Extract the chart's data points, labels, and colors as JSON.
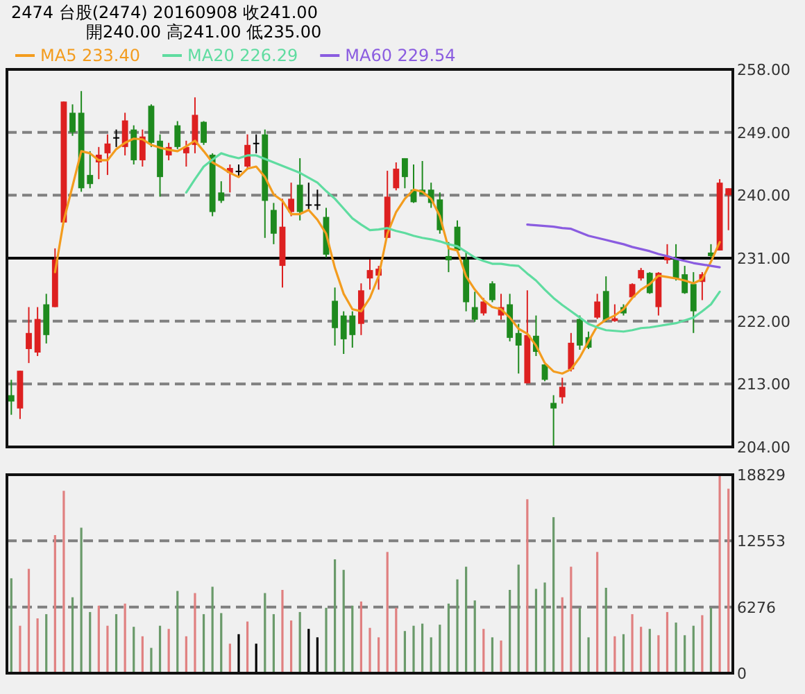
{
  "chart_data": [
    {
      "type": "candlestick",
      "title": "2474  台股(2474) 20160908   收241.00",
      "subtitle": "開240.00   高241.00   低235.00",
      "categories": [
        null,
        null,
        null,
        null,
        null,
        null,
        null,
        null,
        null,
        null,
        null,
        null,
        null,
        null,
        null,
        null,
        null,
        null,
        null,
        null,
        null,
        null,
        null,
        null,
        null,
        null,
        null,
        null,
        null,
        null,
        null,
        null,
        null,
        null,
        null,
        null,
        null,
        null,
        null,
        null,
        null,
        null,
        null,
        null,
        null,
        null,
        null,
        null,
        null,
        null,
        null,
        null,
        null,
        null,
        null,
        null,
        null,
        null,
        null,
        null,
        null,
        null,
        null,
        null,
        null,
        null,
        null,
        null,
        null,
        null,
        null,
        null,
        null,
        null,
        null,
        null,
        null,
        null,
        null,
        null,
        null,
        null,
        null
      ],
      "ohlc": [
        [
          211.4,
          213.6,
          208.6,
          210.5
        ],
        [
          209.5,
          214.9,
          208.0,
          214.9
        ],
        [
          218.0,
          224.0,
          216.0,
          220.3
        ],
        [
          217.5,
          224.0,
          217.0,
          222.3
        ],
        [
          224.4,
          225.9,
          218.8,
          220.0
        ],
        [
          224.0,
          232.4,
          224.0,
          230.8
        ],
        [
          236.1,
          253.4,
          236.1,
          253.4
        ],
        [
          251.8,
          253.0,
          248.5,
          249.0
        ],
        [
          251.8,
          254.9,
          240.5,
          241.0
        ],
        [
          242.9,
          246.3,
          241.0,
          241.6
        ],
        [
          244.7,
          246.9,
          242.3,
          245.8
        ],
        [
          246.0,
          248.7,
          242.9,
          247.4
        ],
        [
          248.3,
          249.4,
          246.9,
          248.3
        ],
        [
          246.9,
          251.8,
          245.7,
          250.7
        ],
        [
          249.4,
          250.0,
          244.4,
          245.0
        ],
        [
          245.0,
          249.4,
          244.1,
          248.4
        ],
        [
          252.8,
          253.0,
          246.9,
          247.5
        ],
        [
          247.8,
          248.7,
          239.8,
          242.6
        ],
        [
          245.7,
          247.5,
          245.0,
          246.9
        ],
        [
          250.0,
          250.6,
          246.6,
          246.9
        ],
        [
          246.0,
          247.8,
          244.1,
          246.9
        ],
        [
          247.2,
          254.0,
          246.0,
          251.5
        ],
        [
          250.5,
          250.6,
          247.2,
          247.5
        ],
        [
          245.8,
          246.0,
          237.0,
          237.6
        ],
        [
          240.4,
          242.0,
          238.9,
          239.2
        ],
        [
          243.2,
          244.4,
          240.4,
          243.9
        ],
        [
          243.5,
          244.4,
          242.6,
          243.5
        ],
        [
          244.1,
          248.7,
          243.8,
          247.2
        ],
        [
          247.5,
          248.7,
          246.0,
          247.5
        ],
        [
          248.7,
          249.4,
          233.9,
          239.2
        ],
        [
          237.9,
          238.9,
          233.0,
          234.5
        ],
        [
          229.9,
          239.5,
          226.8,
          235.5
        ],
        [
          237.6,
          241.8,
          237.0,
          239.5
        ],
        [
          241.5,
          245.3,
          236.4,
          237.6
        ],
        [
          238.7,
          241.8,
          237.9,
          238.7
        ],
        [
          238.7,
          240.8,
          237.9,
          238.7
        ],
        [
          236.9,
          238.2,
          231.1,
          231.5
        ],
        [
          224.9,
          226.8,
          218.5,
          221.0
        ],
        [
          222.8,
          223.4,
          217.3,
          219.4
        ],
        [
          222.8,
          223.4,
          218.2,
          220.0
        ],
        [
          221.6,
          227.4,
          220.0,
          226.4
        ],
        [
          228.1,
          230.8,
          226.5,
          229.3
        ],
        [
          228.5,
          229.9,
          226.5,
          229.5
        ],
        [
          233.9,
          243.5,
          233.9,
          239.8
        ],
        [
          241.0,
          244.7,
          240.7,
          243.8
        ],
        [
          245.3,
          245.3,
          241.0,
          242.6
        ],
        [
          240.8,
          244.4,
          238.9,
          239.0
        ],
        [
          240.8,
          244.9,
          240.1,
          240.1
        ],
        [
          240.8,
          241.8,
          238.2,
          238.9
        ],
        [
          239.4,
          240.4,
          234.5,
          235.0
        ],
        [
          231.3,
          233.3,
          229.0,
          230.7
        ],
        [
          235.5,
          236.4,
          231.8,
          232.1
        ],
        [
          230.8,
          231.8,
          223.4,
          224.7
        ],
        [
          224.0,
          226.2,
          221.9,
          222.2
        ],
        [
          223.1,
          225.3,
          222.8,
          224.8
        ],
        [
          227.4,
          227.7,
          224.7,
          225.0
        ],
        [
          222.8,
          225.9,
          222.2,
          224.0
        ],
        [
          224.4,
          225.9,
          219.1,
          219.6
        ],
        [
          220.3,
          221.6,
          214.5,
          218.5
        ],
        [
          213.1,
          226.4,
          213.1,
          220.0
        ],
        [
          219.9,
          222.8,
          217.0,
          217.6
        ],
        [
          215.8,
          215.8,
          213.4,
          213.6
        ],
        [
          210.3,
          211.4,
          204.0,
          209.5
        ],
        [
          211.1,
          213.9,
          210.2,
          212.6
        ],
        [
          215.1,
          220.3,
          214.8,
          218.9
        ],
        [
          222.3,
          222.8,
          217.9,
          218.5
        ],
        [
          219.7,
          220.5,
          218.0,
          218.2
        ],
        [
          222.5,
          225.9,
          222.3,
          224.8
        ],
        [
          226.3,
          228.4,
          221.9,
          222.2
        ],
        [
          222.0,
          224.4,
          221.9,
          222.4
        ],
        [
          224.0,
          224.4,
          222.8,
          223.1
        ],
        [
          225.4,
          227.4,
          225.3,
          227.3
        ],
        [
          228.1,
          229.6,
          227.8,
          229.3
        ],
        [
          228.9,
          229.0,
          225.9,
          226.0
        ],
        [
          224.0,
          229.0,
          222.8,
          228.9
        ],
        [
          230.7,
          233.0,
          230.2,
          231.3
        ],
        [
          230.8,
          233.0,
          227.8,
          228.1
        ],
        [
          228.7,
          229.9,
          225.9,
          226.0
        ],
        [
          227.3,
          229.0,
          220.3,
          223.4
        ],
        [
          227.6,
          229.0,
          225.0,
          228.7
        ],
        [
          231.8,
          233.0,
          231.1,
          231.3
        ],
        [
          232.1,
          242.3,
          232.1,
          241.8
        ],
        [
          240,
          241,
          235,
          241
        ]
      ],
      "colors": [
        "#1e8a1e",
        "#dd2020",
        "#dd2020",
        "#dd2020",
        "#1e8a1e",
        "#dd2020",
        "#dd2020",
        "#1e8a1e",
        "#1e8a1e",
        "#1e8a1e",
        "#dd2020",
        "#dd2020",
        "#000000",
        "#dd2020",
        "#1e8a1e",
        "#dd2020",
        "#1e8a1e",
        "#1e8a1e",
        "#dd2020",
        "#1e8a1e",
        "#dd2020",
        "#dd2020",
        "#1e8a1e",
        "#1e8a1e",
        "#1e8a1e",
        "#dd2020",
        "#000000",
        "#dd2020",
        "#000000",
        "#1e8a1e",
        "#1e8a1e",
        "#dd2020",
        "#dd2020",
        "#1e8a1e",
        "#000000",
        "#000000",
        "#1e8a1e",
        "#1e8a1e",
        "#1e8a1e",
        "#1e8a1e",
        "#dd2020",
        "#dd2020",
        "#dd2020",
        "#dd2020",
        "#dd2020",
        "#1e8a1e",
        "#1e8a1e",
        "#1e8a1e",
        "#1e8a1e",
        "#1e8a1e",
        "#1e8a1e",
        "#1e8a1e",
        "#1e8a1e",
        "#1e8a1e",
        "#dd2020",
        "#1e8a1e",
        "#dd2020",
        "#1e8a1e",
        "#1e8a1e",
        "#dd2020",
        "#1e8a1e",
        "#1e8a1e",
        "#1e8a1e",
        "#dd2020",
        "#dd2020",
        "#1e8a1e",
        "#1e8a1e",
        "#dd2020",
        "#1e8a1e",
        "#dd2020",
        "#1e8a1e",
        "#dd2020",
        "#dd2020",
        "#1e8a1e",
        "#dd2020",
        "#dd2020",
        "#1e8a1e",
        "#1e8a1e",
        "#1e8a1e",
        "#dd2020",
        "#1e8a1e",
        "#dd2020",
        "#dd2020"
      ],
      "series": [
        {
          "name": "MA5 233.40",
          "type": "line",
          "color": "#f39c1e",
          "values": [
            null,
            null,
            null,
            null,
            null,
            229.0,
            236.4,
            241.3,
            246.3,
            246.0,
            245.0,
            245.0,
            246.6,
            247.5,
            248.1,
            248.0,
            247.2,
            246.8,
            246.5,
            246.3,
            247.0,
            247.8,
            246.3,
            244.7,
            244.0,
            243.2,
            242.6,
            243.8,
            244.1,
            242.6,
            240.1,
            239.2,
            237.3,
            237.3,
            237.9,
            236.5,
            234.5,
            229.6,
            225.9,
            223.7,
            223.4,
            225.3,
            228.4,
            234.5,
            237.6,
            239.5,
            240.8,
            240.5,
            239.5,
            237.0,
            232.4,
            232.1,
            228.4,
            226.5,
            225.0,
            224.0,
            223.7,
            222.5,
            220.9,
            220.2,
            218.5,
            216.0,
            214.8,
            214.5,
            215.1,
            216.8,
            219.1,
            221.3,
            222.2,
            222.8,
            223.7,
            225.3,
            226.5,
            227.3,
            228.5,
            228.3,
            228.1,
            227.8,
            227.4,
            228.0,
            230.5,
            233.3,
            null
          ]
        },
        {
          "name": "MA20 226.29",
          "type": "line",
          "color": "#5fdca0",
          "values": [
            null,
            null,
            null,
            null,
            null,
            null,
            null,
            null,
            null,
            null,
            null,
            null,
            null,
            null,
            null,
            null,
            null,
            null,
            null,
            null,
            240.4,
            242.3,
            244.1,
            245.1,
            246.0,
            245.6,
            245.3,
            245.7,
            245.7,
            245.2,
            244.7,
            244.2,
            243.7,
            243.2,
            242.5,
            241.8,
            240.6,
            239.5,
            238.1,
            236.7,
            235.8,
            235.0,
            235.1,
            235.3,
            234.9,
            234.6,
            234.2,
            233.9,
            233.7,
            233.4,
            233.0,
            232.7,
            231.9,
            231.1,
            230.6,
            230.2,
            230.2,
            230.0,
            229.9,
            228.8,
            227.8,
            226.5,
            225.3,
            224.3,
            223.4,
            222.5,
            221.6,
            221.1,
            220.7,
            220.6,
            220.5,
            220.7,
            221.0,
            221.1,
            221.3,
            221.5,
            221.7,
            222.1,
            222.5,
            223.4,
            224.4,
            226.2,
            null
          ]
        },
        {
          "name": "MA60 229.54",
          "type": "line",
          "color": "#8a5ce0",
          "values": [
            null,
            null,
            null,
            null,
            null,
            null,
            null,
            null,
            null,
            null,
            null,
            null,
            null,
            null,
            null,
            null,
            null,
            null,
            null,
            null,
            null,
            null,
            null,
            null,
            null,
            null,
            null,
            null,
            null,
            null,
            null,
            null,
            null,
            null,
            null,
            null,
            null,
            null,
            null,
            null,
            null,
            null,
            null,
            null,
            null,
            null,
            null,
            null,
            null,
            null,
            null,
            null,
            null,
            null,
            null,
            null,
            null,
            null,
            null,
            235.8,
            235.7,
            235.6,
            235.5,
            235.3,
            235.2,
            234.7,
            234.2,
            233.9,
            233.6,
            233.3,
            233.0,
            232.6,
            232.3,
            232.0,
            231.6,
            231.3,
            230.9,
            230.6,
            230.3,
            230.1,
            229.9,
            229.7,
            null
          ]
        }
      ],
      "ylim": [
        204,
        258
      ],
      "yticks": [
        {
          "value": 204,
          "label": "204.00"
        },
        {
          "value": 213,
          "label": "213.00"
        },
        {
          "value": 222,
          "label": "222.00"
        },
        {
          "value": 231,
          "label": "231.00"
        },
        {
          "value": 240,
          "label": "240.00"
        },
        {
          "value": 249,
          "label": "249.00"
        },
        {
          "value": 258,
          "label": "258.00"
        }
      ],
      "grid": "y",
      "ref_lines": [
        {
          "axis": "y",
          "value": 231,
          "color": "#000000",
          "line_style": "solid"
        }
      ],
      "legend": "top left",
      "marker": "none",
      "tick_labels": "y"
    },
    {
      "type": "bar",
      "categories": [
        null,
        null,
        null,
        null,
        null,
        null,
        null,
        null,
        null,
        null,
        null,
        null,
        null,
        null,
        null,
        null,
        null,
        null,
        null,
        null,
        null,
        null,
        null,
        null,
        null,
        null,
        null,
        null,
        null,
        null,
        null,
        null,
        null,
        null,
        null,
        null,
        null,
        null,
        null,
        null,
        null,
        null,
        null,
        null,
        null,
        null,
        null,
        null,
        null,
        null,
        null,
        null,
        null,
        null,
        null,
        null,
        null,
        null,
        null,
        null,
        null,
        null,
        null,
        null,
        null,
        null,
        null,
        null,
        null,
        null,
        null,
        null,
        null,
        null,
        null,
        null,
        null,
        null,
        null,
        null,
        null,
        null,
        null
      ],
      "values": [
        9000,
        4500,
        9900,
        5200,
        5600,
        13100,
        17300,
        7200,
        13800,
        5800,
        6400,
        4500,
        5600,
        6600,
        4400,
        3500,
        2400,
        4500,
        4200,
        7800,
        3500,
        7600,
        5600,
        8200,
        5700,
        2800,
        3700,
        4900,
        2800,
        7600,
        5600,
        7900,
        5000,
        5800,
        4200,
        3400,
        6200,
        10800,
        9800,
        6400,
        6800,
        4300,
        3400,
        11500,
        6200,
        4000,
        4500,
        4700,
        3400,
        4600,
        6600,
        8900,
        10100,
        6900,
        4200,
        3400,
        3100,
        7900,
        10300,
        16500,
        8000,
        8600,
        14800,
        7200,
        10100,
        6200,
        3400,
        11500,
        8100,
        3500,
        3700,
        5600,
        4400,
        4200,
        3600,
        5800,
        4800,
        3600,
        4500,
        5500,
        6200,
        18800,
        17500
      ],
      "colors": [
        "#6a9a6a",
        "#e08080",
        "#e08080",
        "#e08080",
        "#6a9a6a",
        "#e08080",
        "#e08080",
        "#6a9a6a",
        "#6a9a6a",
        "#6a9a6a",
        "#e08080",
        "#e08080",
        "#6a9a6a",
        "#e08080",
        "#6a9a6a",
        "#e08080",
        "#6a9a6a",
        "#6a9a6a",
        "#e08080",
        "#6a9a6a",
        "#e08080",
        "#e08080",
        "#6a9a6a",
        "#6a9a6a",
        "#6a9a6a",
        "#e08080",
        "#000000",
        "#e08080",
        "#000000",
        "#6a9a6a",
        "#6a9a6a",
        "#e08080",
        "#e08080",
        "#6a9a6a",
        "#000000",
        "#000000",
        "#6a9a6a",
        "#6a9a6a",
        "#6a9a6a",
        "#6a9a6a",
        "#e08080",
        "#e08080",
        "#e08080",
        "#e08080",
        "#e08080",
        "#6a9a6a",
        "#6a9a6a",
        "#6a9a6a",
        "#6a9a6a",
        "#6a9a6a",
        "#6a9a6a",
        "#6a9a6a",
        "#6a9a6a",
        "#6a9a6a",
        "#e08080",
        "#6a9a6a",
        "#e08080",
        "#6a9a6a",
        "#6a9a6a",
        "#e08080",
        "#6a9a6a",
        "#6a9a6a",
        "#6a9a6a",
        "#e08080",
        "#e08080",
        "#6a9a6a",
        "#6a9a6a",
        "#e08080",
        "#6a9a6a",
        "#e08080",
        "#6a9a6a",
        "#e08080",
        "#e08080",
        "#6a9a6a",
        "#e08080",
        "#e08080",
        "#6a9a6a",
        "#6a9a6a",
        "#6a9a6a",
        "#e08080",
        "#6a9a6a",
        "#e08080",
        "#e08080"
      ],
      "ylim": [
        0,
        18829
      ],
      "yticks": [
        0,
        6276,
        12553,
        18829
      ],
      "grid": "y",
      "tick_labels": "y"
    }
  ]
}
